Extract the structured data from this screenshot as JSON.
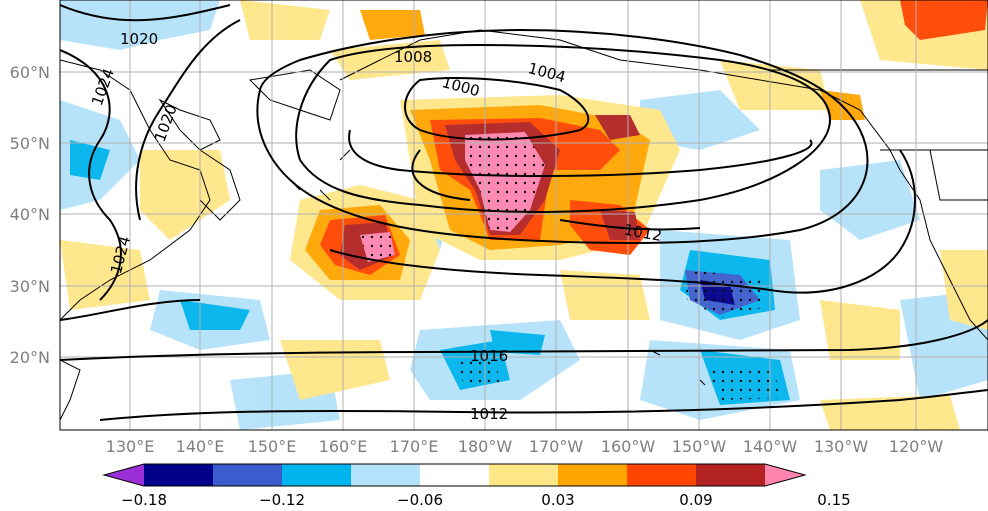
{
  "map": {
    "lon_labels": [
      "130°E",
      "140°E",
      "150°E",
      "160°E",
      "170°E",
      "180°W",
      "170°W",
      "160°W",
      "150°W",
      "140°W",
      "130°W",
      "120°W"
    ],
    "lat_labels": [
      "60°N",
      "50°N",
      "40°N",
      "30°N",
      "20°N"
    ],
    "contour_labels": [
      "1020",
      "1024",
      "1020",
      "1008",
      "1004",
      "1000",
      "1012",
      "1024",
      "1016",
      "1012"
    ]
  },
  "colorbar": {
    "tick_labels": [
      "−0.18",
      "−0.12",
      "−0.06",
      "0.03",
      "0.09",
      "0.15"
    ],
    "levels": [
      -0.18,
      -0.15,
      -0.12,
      -0.09,
      -0.06,
      -0.03,
      0.03,
      0.06,
      0.09,
      0.12,
      0.15
    ],
    "colors": [
      "#9b30d9",
      "#00008b",
      "#3a5ccc",
      "#00b4ee",
      "#b4e2fa",
      "#ffffff",
      "#ffe687",
      "#ffa500",
      "#ff4500",
      "#b22222",
      "#ff85b0"
    ],
    "extend": "both"
  }
}
